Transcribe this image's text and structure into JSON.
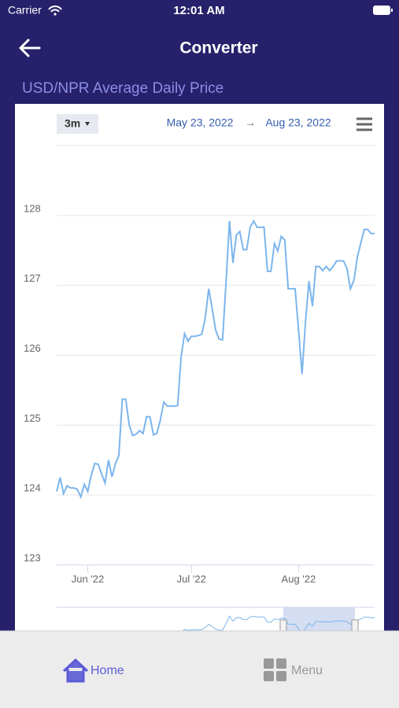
{
  "status_bar": {
    "carrier": "Carrier",
    "time": "12:01 AM"
  },
  "header": {
    "title": "Converter"
  },
  "chart_data": {
    "type": "line",
    "title": "USD/NPR Average Daily Price",
    "range_selector": "3m",
    "date_from": "May 23, 2022",
    "date_separator": "→",
    "date_to": "Aug 23, 2022",
    "categories": [
      null,
      null,
      null,
      null,
      null,
      null,
      null,
      null,
      null,
      "Jun '22",
      null,
      null,
      null,
      null,
      null,
      null,
      null,
      null,
      null,
      null,
      null,
      null,
      null,
      null,
      null,
      null,
      null,
      null,
      null,
      null,
      null,
      null,
      null,
      null,
      null,
      null,
      null,
      null,
      null,
      "Jul '22",
      null,
      null,
      null,
      null,
      null,
      null,
      null,
      null,
      null,
      null,
      null,
      null,
      null,
      null,
      null,
      null,
      null,
      null,
      null,
      null,
      null,
      null,
      null,
      null,
      null,
      null,
      null,
      null,
      null,
      null,
      "Aug '22",
      null,
      null,
      null,
      null,
      null,
      null,
      null,
      null,
      null,
      null,
      null,
      null,
      null,
      null,
      null,
      null,
      null,
      null,
      null,
      null,
      null,
      null
    ],
    "values": [
      124.05,
      124.25,
      124.02,
      124.13,
      124.1,
      124.1,
      124.08,
      123.97,
      124.15,
      124.05,
      124.28,
      124.45,
      124.44,
      124.3,
      124.17,
      124.5,
      124.26,
      124.45,
      124.56,
      125.37,
      125.37,
      125.0,
      124.85,
      124.87,
      124.92,
      124.88,
      125.12,
      125.12,
      124.86,
      124.88,
      125.07,
      125.33,
      125.27,
      125.27,
      125.27,
      125.28,
      125.97,
      126.31,
      126.2,
      126.27,
      126.27,
      126.28,
      126.3,
      126.53,
      126.95,
      126.67,
      126.36,
      126.23,
      126.22,
      127.04,
      127.92,
      127.32,
      127.72,
      127.77,
      127.51,
      127.51,
      127.83,
      127.92,
      127.83,
      127.83,
      127.83,
      127.2,
      127.2,
      127.6,
      127.49,
      127.7,
      127.65,
      126.95,
      126.95,
      126.95,
      126.36,
      125.73,
      126.48,
      127.06,
      126.7,
      127.27,
      127.27,
      127.21,
      127.27,
      127.21,
      127.27,
      127.35,
      127.35,
      127.35,
      127.24,
      126.95,
      127.07,
      127.4,
      127.6,
      127.8,
      127.8,
      127.74,
      127.74
    ],
    "color": "#7cb5ec",
    "ylim": [
      123,
      129
    ],
    "yticks": [
      123,
      124,
      125,
      126,
      127,
      128
    ],
    "grid": true
  },
  "tab_bar": {
    "home": "Home",
    "menu": "Menu"
  }
}
